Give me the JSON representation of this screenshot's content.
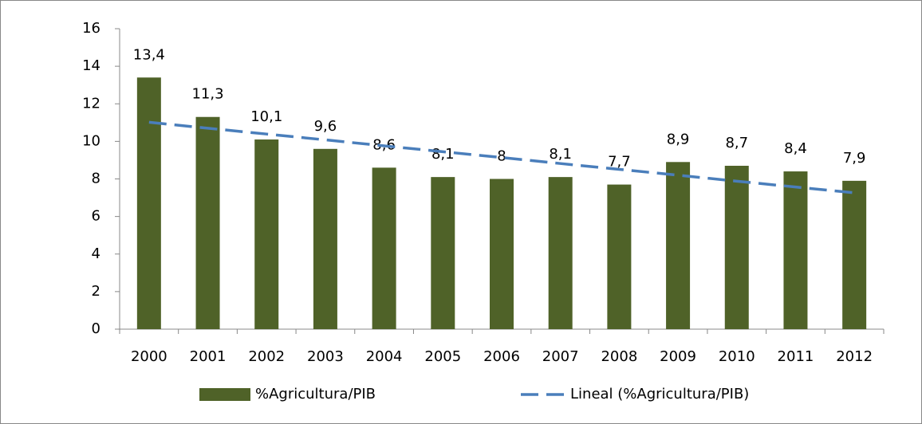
{
  "chart_data": {
    "type": "bar",
    "categories": [
      "2000",
      "2001",
      "2002",
      "2003",
      "2004",
      "2005",
      "2006",
      "2007",
      "2008",
      "2009",
      "2010",
      "2011",
      "2012"
    ],
    "series": [
      {
        "name": "%Agricultura/PIB",
        "type": "bar",
        "color": "#4f6228",
        "values": [
          13.4,
          11.3,
          10.1,
          9.6,
          8.6,
          8.1,
          8,
          8.1,
          7.7,
          8.9,
          8.7,
          8.4,
          7.9
        ],
        "value_labels": [
          "13,4",
          "11,3",
          "10,1",
          "9,6",
          "8,6",
          "8,1",
          "8",
          "8,1",
          "7,7",
          "8,9",
          "8,7",
          "8,4",
          "7,9"
        ]
      },
      {
        "name": "Lineal (%Agricultura/PIB)",
        "type": "line",
        "dashed": true,
        "color": "#4a7ebb",
        "values": [
          11.02,
          10.7,
          10.39,
          10.08,
          9.76,
          9.45,
          9.14,
          8.82,
          8.51,
          8.2,
          7.88,
          7.57,
          7.26
        ]
      }
    ],
    "ylim": [
      0,
      16
    ],
    "yticks": [
      0,
      2,
      4,
      6,
      8,
      10,
      12,
      14,
      16
    ],
    "grid": false,
    "legend": "bottom"
  }
}
